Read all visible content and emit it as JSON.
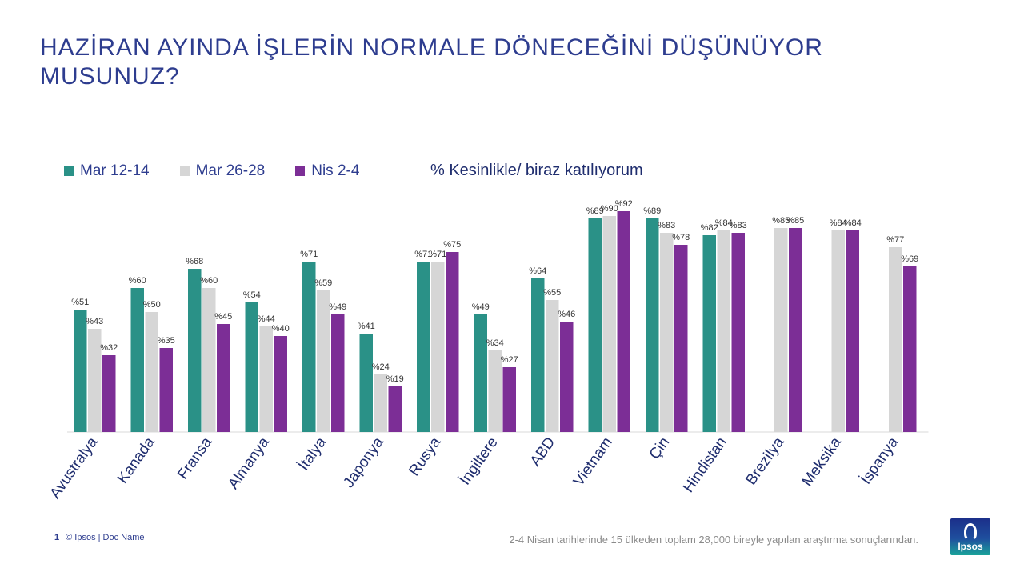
{
  "title": "HAZİRAN AYINDA İŞLERİN NORMALE DÖNECEĞİNİ DÜŞÜNÜYOR MUSUNUZ?",
  "metric_label": "% Kesinlikle/ biraz katılıyorum",
  "footer": {
    "page_number": "1",
    "doc": "© Ipsos | Doc Name",
    "source": "2-4 Nisan tarihlerinde 15 ülkeden toplam 28,000 bireyle yapılan araştırma sonuçlarından."
  },
  "logo": {
    "text": "Ipsos"
  },
  "chart_data": {
    "type": "bar",
    "title": "HAZİRAN AYINDA İŞLERİN NORMALE DÖNECEĞİNİ DÜŞÜNÜYOR MUSUNUZ?",
    "ylabel": "% Kesinlikle/ biraz katılıyorum",
    "xlabel": "",
    "ylim": [
      0,
      100
    ],
    "value_prefix": "%",
    "legend_position": "top-left",
    "categories": [
      "Avustralya",
      "Kanada",
      "Fransa",
      "Almanya",
      "İtalya",
      "Japonya",
      "Rusya",
      "İngiltere",
      "ABD",
      "Vietnam",
      "Çin",
      "Hindistan",
      "Brezilya",
      "Meksika",
      "İspanya"
    ],
    "series": [
      {
        "name": "Mar 12-14",
        "color": "#2a9187",
        "values": [
          51,
          60,
          68,
          54,
          71,
          41,
          71,
          49,
          64,
          89,
          89,
          82,
          null,
          null,
          null
        ]
      },
      {
        "name": "Mar 26-28",
        "color": "#d6d6d6",
        "values": [
          43,
          50,
          60,
          44,
          59,
          24,
          71,
          34,
          55,
          90,
          83,
          84,
          85,
          84,
          77
        ]
      },
      {
        "name": "Nis 2-4",
        "color": "#7c2e96",
        "values": [
          32,
          35,
          45,
          40,
          49,
          19,
          75,
          27,
          46,
          92,
          78,
          83,
          85,
          84,
          69
        ]
      }
    ]
  }
}
